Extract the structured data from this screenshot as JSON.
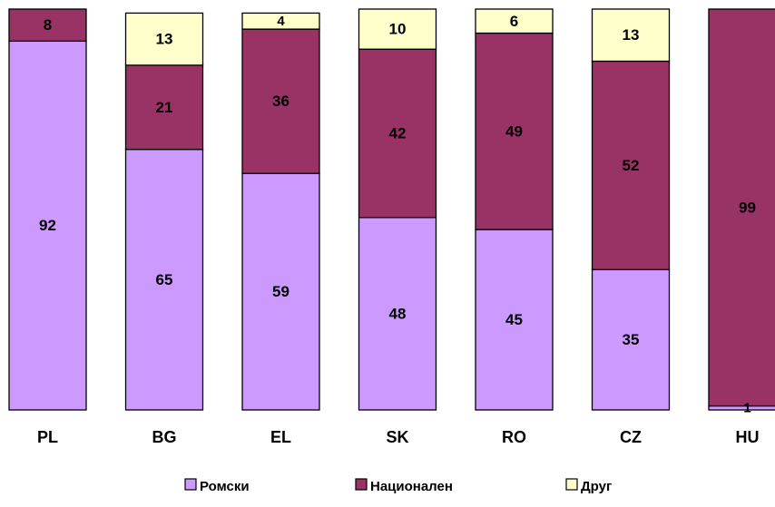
{
  "chart_data": {
    "type": "bar",
    "stacked": true,
    "orientation": "vertical",
    "categories": [
      "PL",
      "BG",
      "EL",
      "SK",
      "RO",
      "CZ",
      "HU"
    ],
    "series": [
      {
        "name": "Ромски",
        "values": [
          92,
          65,
          59,
          48,
          45,
          35,
          1
        ]
      },
      {
        "name": "Национален",
        "values": [
          8,
          21,
          36,
          42,
          49,
          52,
          99
        ]
      },
      {
        "name": "Друг",
        "values": [
          0,
          13,
          4,
          10,
          6,
          13,
          0
        ]
      }
    ],
    "ylim": [
      0,
      100
    ],
    "grid": false,
    "legend": "bottom",
    "colors": [
      "#CC99FF",
      "#993366",
      "#FFFFCC"
    ],
    "data_labels": true
  }
}
